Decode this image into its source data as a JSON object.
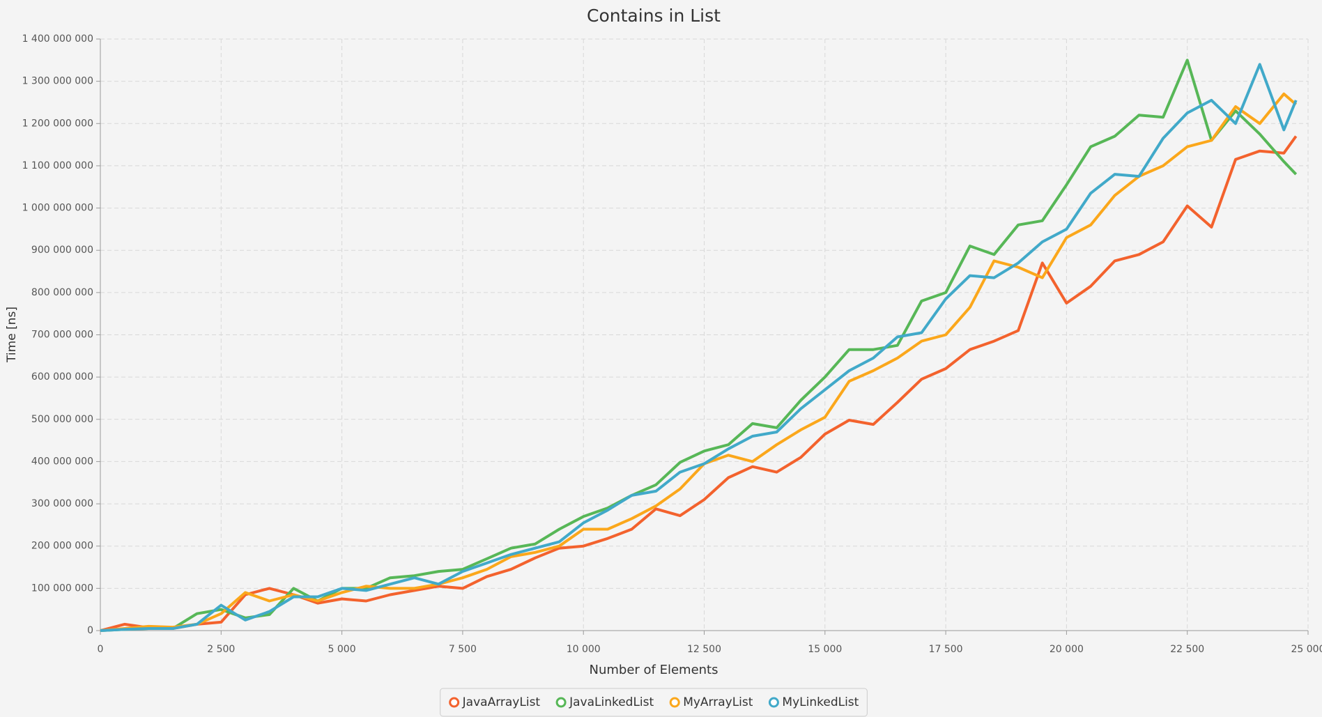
{
  "chart_data": {
    "type": "line",
    "title": "Contains in List",
    "x_label": "Number of Elements",
    "y_label": "Time [ns]",
    "x": [
      0,
      500,
      1000,
      1500,
      2000,
      2500,
      3000,
      3500,
      4000,
      4500,
      5000,
      5500,
      6000,
      6500,
      7000,
      7500,
      8000,
      8500,
      9000,
      9500,
      10000,
      10500,
      11000,
      11500,
      12000,
      12500,
      13000,
      13500,
      14000,
      14500,
      15000,
      15500,
      16000,
      16500,
      17000,
      17500,
      18000,
      18500,
      19000,
      19500,
      20000,
      20500,
      21000,
      21500,
      22000,
      22500,
      23000,
      23500,
      24000,
      24500,
      24750
    ],
    "series": [
      {
        "name": "JavaArrayList",
        "color": "#f3622d",
        "values": [
          0,
          15000000.0,
          7000000.0,
          5000000.0,
          15000000.0,
          20000000.0,
          85000000.0,
          100000000.0,
          85000000.0,
          65000000.0,
          75000000.0,
          70000000.0,
          85000000.0,
          95000000.0,
          105000000.0,
          100000000.0,
          128000000.0,
          145000000.0,
          172000000.0,
          195000000.0,
          200000000.0,
          218000000.0,
          240000000.0,
          288000000.0,
          272000000.0,
          310000000.0,
          362000000.0,
          388000000.0,
          375000000.0,
          410000000.0,
          465000000.0,
          498000000.0,
          488000000.0,
          540000000.0,
          595000000.0,
          620000000.0,
          665000000.0,
          685000000.0,
          710000000.0,
          870000000.0,
          775000000.0,
          815000000.0,
          875000000.0,
          890000000.0,
          920000000.0,
          1005000000.0,
          955000000.0,
          1115000000.0,
          1135000000.0,
          1130000000.0,
          1170000000.0
        ]
      },
      {
        "name": "JavaLinkedList",
        "color": "#57b757",
        "values": [
          0,
          3000000.0,
          5000000.0,
          5000000.0,
          40000000.0,
          50000000.0,
          30000000.0,
          38000000.0,
          100000000.0,
          70000000.0,
          100000000.0,
          100000000.0,
          125000000.0,
          130000000.0,
          140000000.0,
          145000000.0,
          170000000.0,
          195000000.0,
          205000000.0,
          240000000.0,
          270000000.0,
          290000000.0,
          320000000.0,
          345000000.0,
          398000000.0,
          425000000.0,
          440000000.0,
          490000000.0,
          480000000.0,
          545000000.0,
          600000000.0,
          665000000.0,
          665000000.0,
          675000000.0,
          780000000.0,
          800000000.0,
          910000000.0,
          890000000.0,
          960000000.0,
          970000000.0,
          1055000000.0,
          1145000000.0,
          1170000000.0,
          1220000000.0,
          1215000000.0,
          1350000000.0,
          1160000000.0,
          1230000000.0,
          1175000000.0,
          1110000000.0,
          1080000000.0
        ]
      },
      {
        "name": "MyArrayList",
        "color": "#fba71b",
        "values": [
          0,
          5000000.0,
          10000000.0,
          8000000.0,
          15000000.0,
          40000000.0,
          90000000.0,
          70000000.0,
          85000000.0,
          70000000.0,
          90000000.0,
          105000000.0,
          100000000.0,
          100000000.0,
          110000000.0,
          125000000.0,
          145000000.0,
          175000000.0,
          185000000.0,
          200000000.0,
          240000000.0,
          240000000.0,
          265000000.0,
          295000000.0,
          335000000.0,
          395000000.0,
          415000000.0,
          400000000.0,
          440000000.0,
          475000000.0,
          505000000.0,
          590000000.0,
          615000000.0,
          645000000.0,
          685000000.0,
          700000000.0,
          765000000.0,
          875000000.0,
          860000000.0,
          835000000.0,
          930000000.0,
          960000000.0,
          1030000000.0,
          1075000000.0,
          1100000000.0,
          1145000000.0,
          1160000000.0,
          1240000000.0,
          1200000000.0,
          1270000000.0,
          1245000000.0
        ]
      },
      {
        "name": "MyLinkedList",
        "color": "#41a9c9",
        "values": [
          0,
          3000000.0,
          5000000.0,
          5000000.0,
          15000000.0,
          60000000.0,
          25000000.0,
          45000000.0,
          80000000.0,
          80000000.0,
          100000000.0,
          95000000.0,
          110000000.0,
          125000000.0,
          110000000.0,
          140000000.0,
          160000000.0,
          180000000.0,
          195000000.0,
          210000000.0,
          255000000.0,
          285000000.0,
          320000000.0,
          330000000.0,
          375000000.0,
          395000000.0,
          430000000.0,
          460000000.0,
          470000000.0,
          525000000.0,
          570000000.0,
          615000000.0,
          645000000.0,
          695000000.0,
          705000000.0,
          785000000.0,
          840000000.0,
          835000000.0,
          870000000.0,
          920000000.0,
          950000000.0,
          1035000000.0,
          1080000000.0,
          1075000000.0,
          1165000000.0,
          1225000000.0,
          1255000000.0,
          1200000000.0,
          1340000000.0,
          1185000000.0,
          1255000000.0
        ]
      }
    ],
    "xlim": [
      0,
      25000
    ],
    "xticks": [
      0,
      {
        "value": 2500,
        "label": "2 500"
      },
      {
        "value": 5000,
        "label": "5 000"
      },
      {
        "value": 7500,
        "label": "7 500"
      },
      {
        "value": 10000,
        "label": "10 000"
      },
      {
        "value": 12500,
        "label": "12 500"
      },
      {
        "value": 15000,
        "label": "15 000"
      },
      {
        "value": 17500,
        "label": "17 500"
      },
      {
        "value": 20000,
        "label": "20 000"
      },
      {
        "value": 22500,
        "label": "22 500"
      },
      {
        "value": 25000,
        "label": "25 000"
      }
    ],
    "ylim": [
      0,
      1400000000
    ],
    "yticks": [
      0,
      {
        "value": 100000000,
        "label": "100 000 000"
      },
      {
        "value": 200000000,
        "label": "200 000 000"
      },
      {
        "value": 300000000,
        "label": "300 000 000"
      },
      {
        "value": 400000000,
        "label": "400 000 000"
      },
      {
        "value": 500000000,
        "label": "500 000 000"
      },
      {
        "value": 600000000,
        "label": "600 000 000"
      },
      {
        "value": 700000000,
        "label": "700 000 000"
      },
      {
        "value": 800000000,
        "label": "800 000 000"
      },
      {
        "value": 900000000,
        "label": "900 000 000"
      },
      {
        "value": 1000000000,
        "label": "1 000 000 000"
      },
      {
        "value": 1100000000,
        "label": "1 100 000 000"
      },
      {
        "value": 1200000000,
        "label": "1 200 000 000"
      },
      {
        "value": 1300000000,
        "label": "1 300 000 000"
      },
      {
        "value": 1400000000,
        "label": "1 400 000 000"
      }
    ],
    "grid": true,
    "legend": "bottom"
  }
}
